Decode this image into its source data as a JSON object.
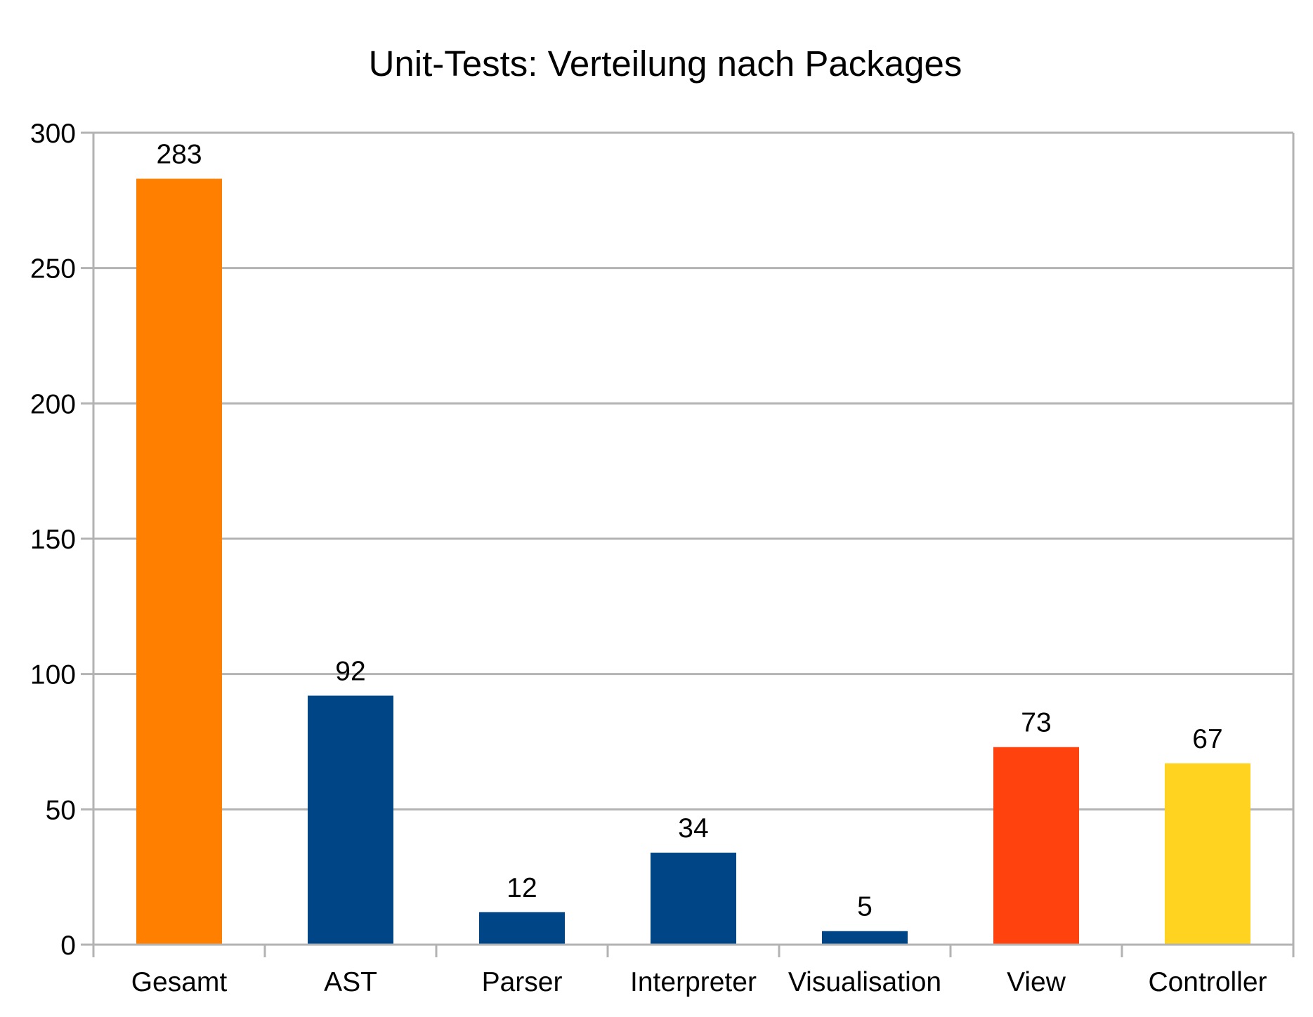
{
  "chart_data": {
    "type": "bar",
    "title": "Unit-Tests: Verteilung nach Packages",
    "xlabel": "",
    "ylabel": "",
    "ylim": [
      0,
      300
    ],
    "yticks": [
      0,
      50,
      100,
      150,
      200,
      250,
      300
    ],
    "grid": true,
    "legend": "none",
    "categories": [
      "Gesamt",
      "AST",
      "Parser",
      "Interpreter",
      "Visualisation",
      "View",
      "Controller"
    ],
    "values": [
      283,
      92,
      12,
      34,
      5,
      73,
      67
    ],
    "colors": [
      "#ff8000",
      "#004586",
      "#004586",
      "#004586",
      "#004586",
      "#ff420e",
      "#ffd320"
    ],
    "data_labels": true
  }
}
